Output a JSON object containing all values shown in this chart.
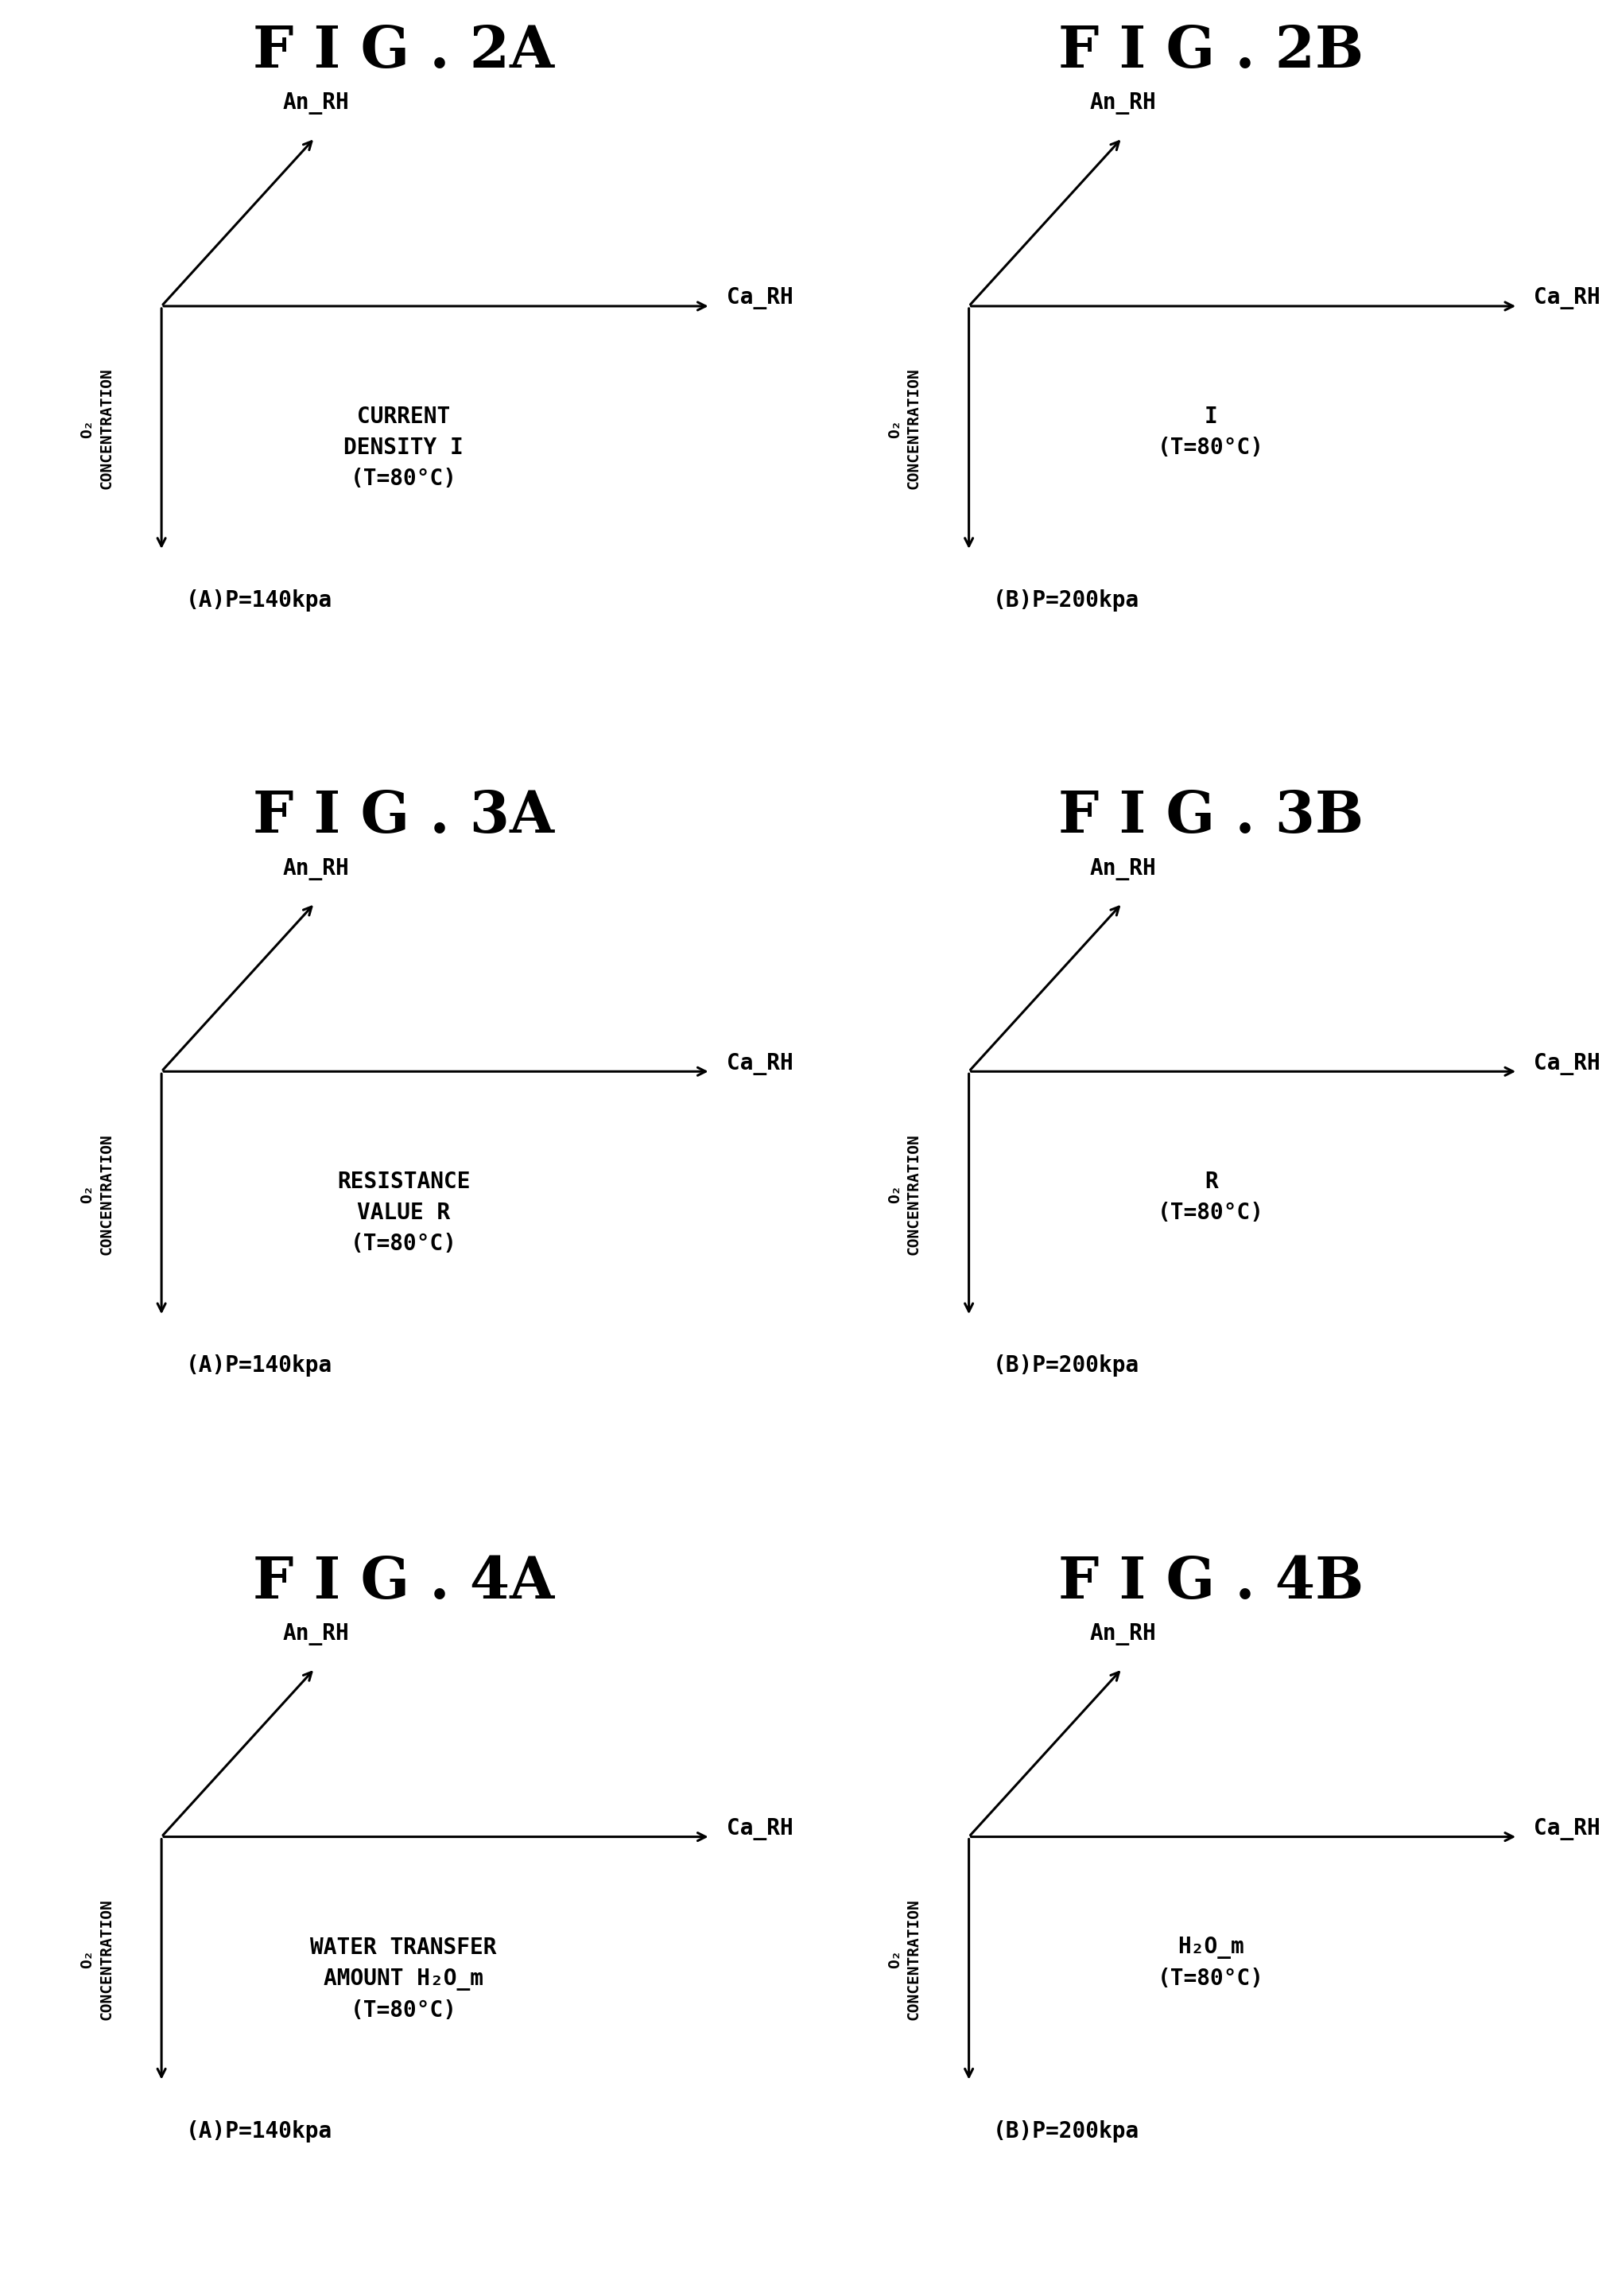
{
  "background_color": "#ffffff",
  "fig_width": 20.31,
  "fig_height": 28.87,
  "panels": [
    {
      "title": "F I G . 2A",
      "col": 0,
      "row": 0,
      "label_A": "(A)P=140kpa",
      "content_lines": [
        "CURRENT",
        "DENSITY I",
        "(T=80°C)"
      ]
    },
    {
      "title": "F I G . 2B",
      "col": 1,
      "row": 0,
      "label_A": "(B)P=200kpa",
      "content_lines": [
        "I",
        "(T=80°C)"
      ]
    },
    {
      "title": "F I G . 3A",
      "col": 0,
      "row": 1,
      "label_A": "(A)P=140kpa",
      "content_lines": [
        "RESISTANCE",
        "VALUE R",
        "(T=80°C)"
      ]
    },
    {
      "title": "F I G . 3B",
      "col": 1,
      "row": 1,
      "label_A": "(B)P=200kpa",
      "content_lines": [
        "R",
        "(T=80°C)"
      ]
    },
    {
      "title": "F I G . 4A",
      "col": 0,
      "row": 2,
      "label_A": "(A)P=140kpa",
      "content_lines": [
        "WATER TRANSFER",
        "AMOUNT H₂O_m",
        "(T=80°C)"
      ]
    },
    {
      "title": "F I G . 4B",
      "col": 1,
      "row": 2,
      "label_A": "(B)P=200kpa",
      "content_lines": [
        "H₂O_m",
        "(T=80°C)"
      ]
    }
  ]
}
